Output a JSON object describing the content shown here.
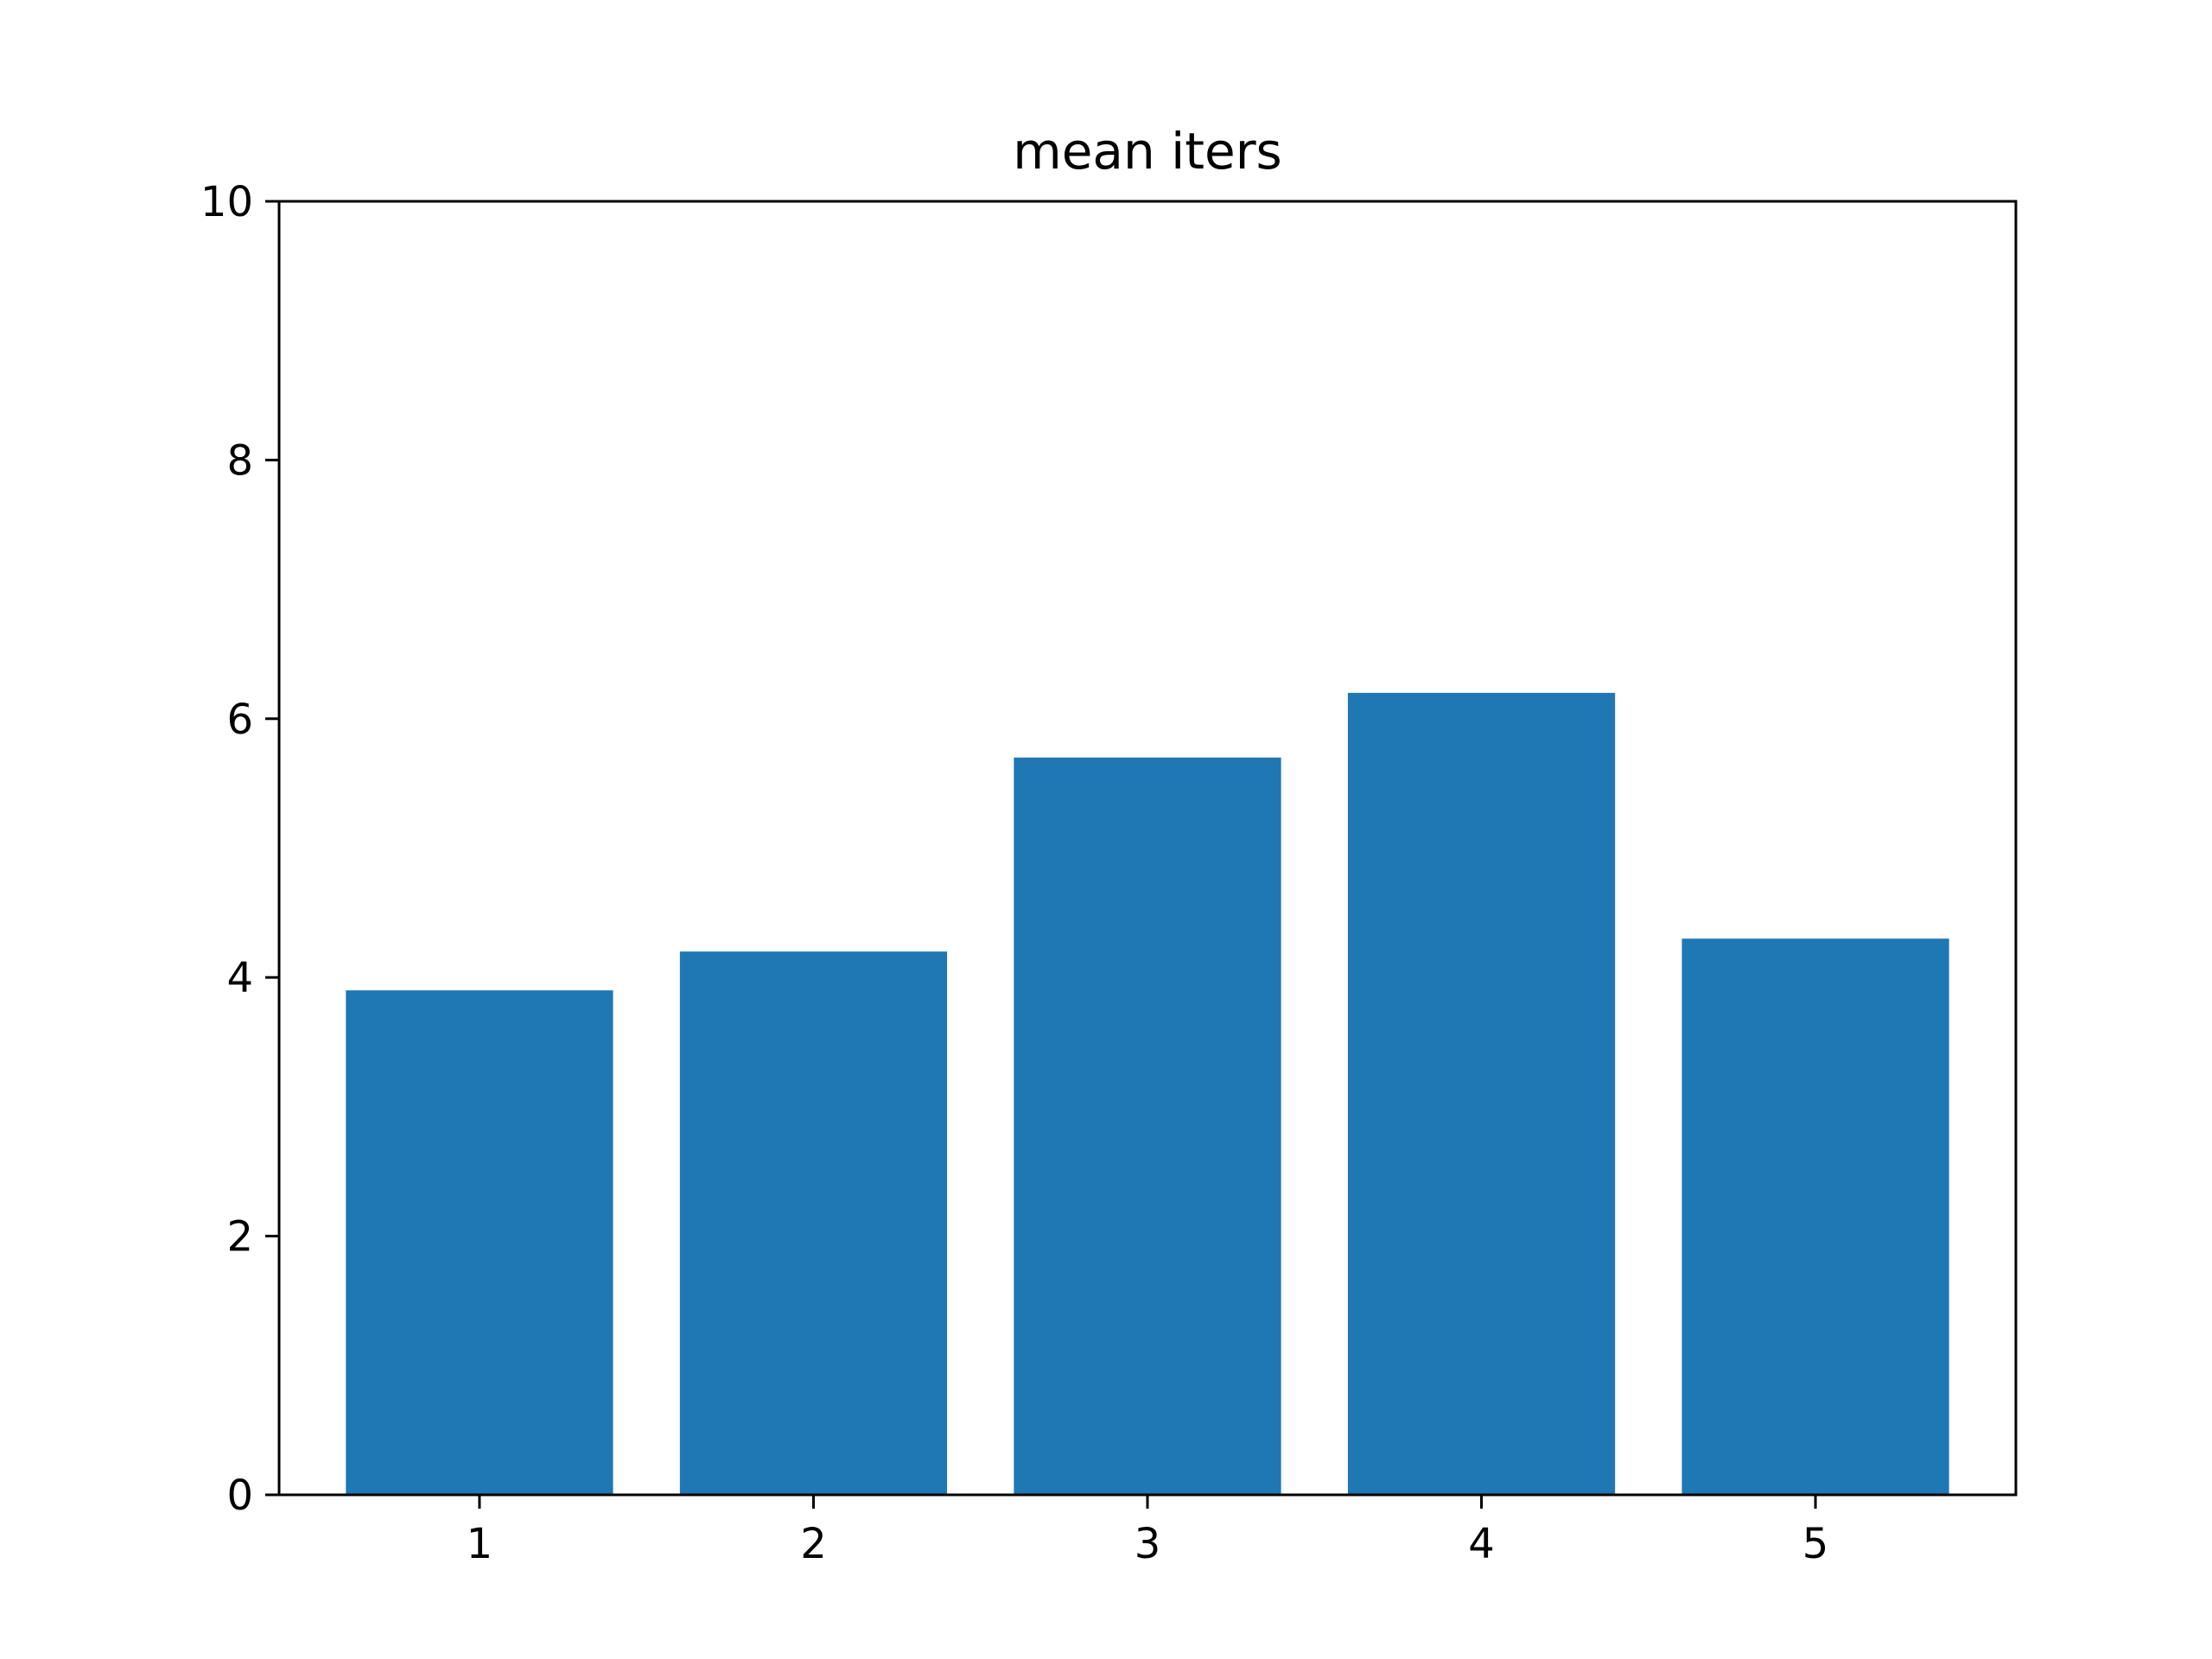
{
  "chart_data": {
    "type": "bar",
    "title": "mean iters",
    "xlabel": "",
    "ylabel": "",
    "categories": [
      "1",
      "2",
      "3",
      "4",
      "5"
    ],
    "values": [
      3.9,
      4.2,
      5.7,
      6.2,
      4.3
    ],
    "ylim": [
      0,
      10
    ],
    "yticks": [
      "0",
      "2",
      "4",
      "6",
      "8",
      "10"
    ],
    "bar_color": "#1f77b4",
    "grid": false,
    "legend": "none"
  }
}
